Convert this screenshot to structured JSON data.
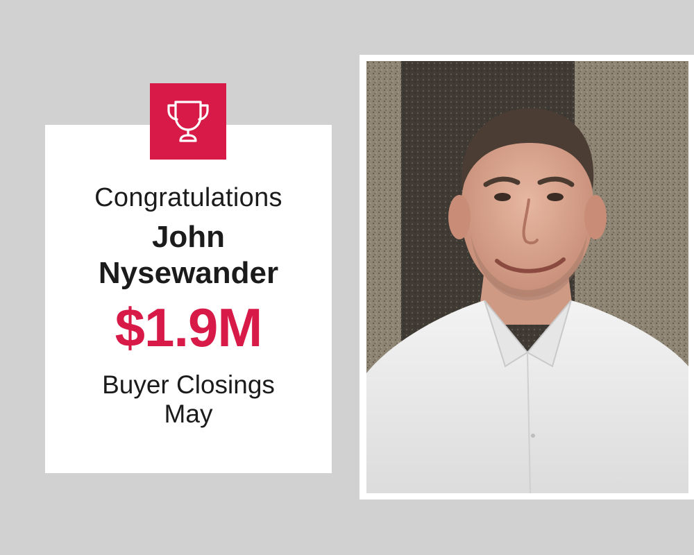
{
  "award": {
    "icon": "trophy-icon",
    "headline": "Congratulations",
    "name_line1": "John",
    "name_line2": "Nysewander",
    "amount": "$1.9M",
    "category": "Buyer Closings",
    "period": "May"
  },
  "photo": {
    "subject": "portrait-photo"
  },
  "colors": {
    "accent": "#d71a47",
    "background": "#d1d1d1",
    "card": "#ffffff",
    "text": "#1b1b1b"
  }
}
